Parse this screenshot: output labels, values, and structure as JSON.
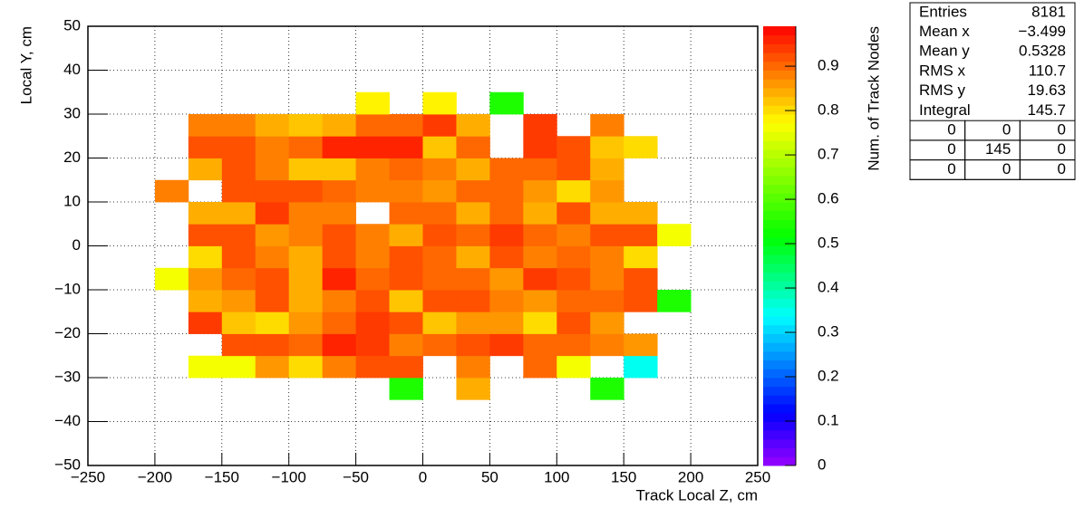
{
  "chart_data": {
    "type": "heatmap",
    "xlabel": "Track Local Z, cm",
    "ylabel": "Local Y, cm",
    "zlabel": "Num. of Track Nodes",
    "xbins": [
      -200,
      -175,
      -150,
      -125,
      -100,
      -75,
      -50,
      -25,
      0,
      25,
      50,
      75,
      100,
      125,
      150,
      175,
      200
    ],
    "ybins": [
      -35,
      -30,
      -25,
      -20,
      -15,
      -10,
      -5,
      0,
      5,
      10,
      15,
      20,
      25,
      30,
      35
    ],
    "z": [
      [
        null,
        null,
        null,
        null,
        null,
        null,
        null,
        0.55,
        null,
        0.84,
        null,
        null,
        null,
        0.55,
        null,
        null
      ],
      [
        null,
        0.76,
        0.77,
        0.86,
        0.8,
        0.88,
        0.92,
        0.93,
        null,
        0.88,
        null,
        0.9,
        0.77,
        null,
        0.35,
        null
      ],
      [
        null,
        null,
        0.92,
        0.92,
        0.9,
        0.97,
        0.94,
        0.88,
        0.9,
        0.92,
        0.95,
        0.9,
        0.9,
        0.88,
        0.86,
        null
      ],
      [
        null,
        0.95,
        0.82,
        0.8,
        0.86,
        0.9,
        0.94,
        0.92,
        0.82,
        0.86,
        0.86,
        0.8,
        0.92,
        0.86,
        null,
        null
      ],
      [
        null,
        0.85,
        0.86,
        0.92,
        0.85,
        0.88,
        0.92,
        0.82,
        0.92,
        0.92,
        0.88,
        0.86,
        0.9,
        0.9,
        0.92,
        0.55
      ],
      [
        0.76,
        0.86,
        0.9,
        0.92,
        0.85,
        0.96,
        0.9,
        0.92,
        0.91,
        0.91,
        0.86,
        0.94,
        0.93,
        0.88,
        0.92,
        null
      ],
      [
        null,
        0.8,
        0.92,
        0.88,
        0.85,
        0.92,
        0.88,
        0.92,
        0.9,
        0.85,
        0.92,
        0.88,
        0.9,
        0.88,
        0.8,
        null
      ],
      [
        null,
        0.92,
        0.92,
        0.86,
        0.88,
        0.92,
        0.88,
        0.84,
        0.93,
        0.9,
        0.94,
        0.9,
        0.88,
        0.92,
        0.92,
        0.76
      ],
      [
        null,
        0.85,
        0.85,
        0.95,
        0.88,
        0.88,
        null,
        0.9,
        0.9,
        0.84,
        0.9,
        0.85,
        0.92,
        0.84,
        0.84,
        null
      ],
      [
        0.88,
        null,
        0.93,
        0.93,
        0.92,
        0.9,
        0.88,
        0.88,
        0.86,
        0.9,
        0.9,
        0.86,
        0.8,
        0.86,
        null,
        null
      ],
      [
        null,
        0.85,
        0.92,
        0.88,
        0.82,
        0.82,
        0.88,
        0.9,
        0.88,
        0.85,
        0.9,
        0.9,
        0.92,
        0.85,
        null,
        null
      ],
      [
        null,
        0.92,
        0.92,
        0.88,
        0.9,
        0.96,
        0.97,
        0.97,
        0.83,
        0.9,
        null,
        0.95,
        0.92,
        0.82,
        0.8,
        null
      ],
      [
        null,
        0.88,
        0.88,
        0.84,
        0.82,
        0.84,
        0.9,
        0.9,
        0.95,
        0.84,
        null,
        0.95,
        null,
        0.88,
        null,
        null
      ],
      [
        null,
        null,
        null,
        null,
        null,
        null,
        0.78,
        null,
        0.78,
        null,
        0.55,
        null,
        null,
        null,
        null,
        null
      ]
    ],
    "xlim": [
      -250,
      250
    ],
    "xticks": [
      {
        "value": -250,
        "label": "−250"
      },
      {
        "value": -200,
        "label": "−200"
      },
      {
        "value": -150,
        "label": "−150"
      },
      {
        "value": -100,
        "label": "−100"
      },
      {
        "value": -50,
        "label": "−50"
      },
      0,
      50,
      100,
      150,
      200,
      250
    ],
    "ylim": [
      -50,
      50
    ],
    "yticks": [
      {
        "value": -50,
        "label": "−50"
      },
      {
        "value": -40,
        "label": "−40"
      },
      {
        "value": -30,
        "label": "−30"
      },
      {
        "value": -20,
        "label": "−20"
      },
      {
        "value": -10,
        "label": "−10"
      },
      0,
      10,
      20,
      30,
      40,
      50
    ],
    "zlim": [
      0,
      0.99
    ],
    "zticks": [
      0,
      0.1,
      0.2,
      0.3,
      0.4,
      0.5,
      0.6,
      0.7,
      0.8,
      0.9
    ],
    "colorscale": [
      [
        0,
        "#9900ff"
      ],
      [
        0.12,
        "#0000ff"
      ],
      [
        0.34,
        "#00ffff"
      ],
      [
        0.52,
        "#00ff00"
      ],
      [
        0.78,
        "#ffff00"
      ],
      [
        1,
        "#ff0000"
      ]
    ],
    "grid": true,
    "stats": [
      {
        "name": "Entries",
        "value": 8181
      },
      {
        "name": "Mean x",
        "value": -3.499,
        "label": "−3.499"
      },
      {
        "name": "Mean y",
        "value": 0.5328
      },
      {
        "name": "RMS x",
        "value": 110.7
      },
      {
        "name": "RMS y",
        "value": 19.63
      },
      {
        "name": "Integral",
        "value": 145.7
      }
    ],
    "overflow": [
      [
        0,
        0,
        0
      ],
      [
        0,
        145,
        0
      ],
      [
        0,
        0,
        0
      ]
    ]
  }
}
